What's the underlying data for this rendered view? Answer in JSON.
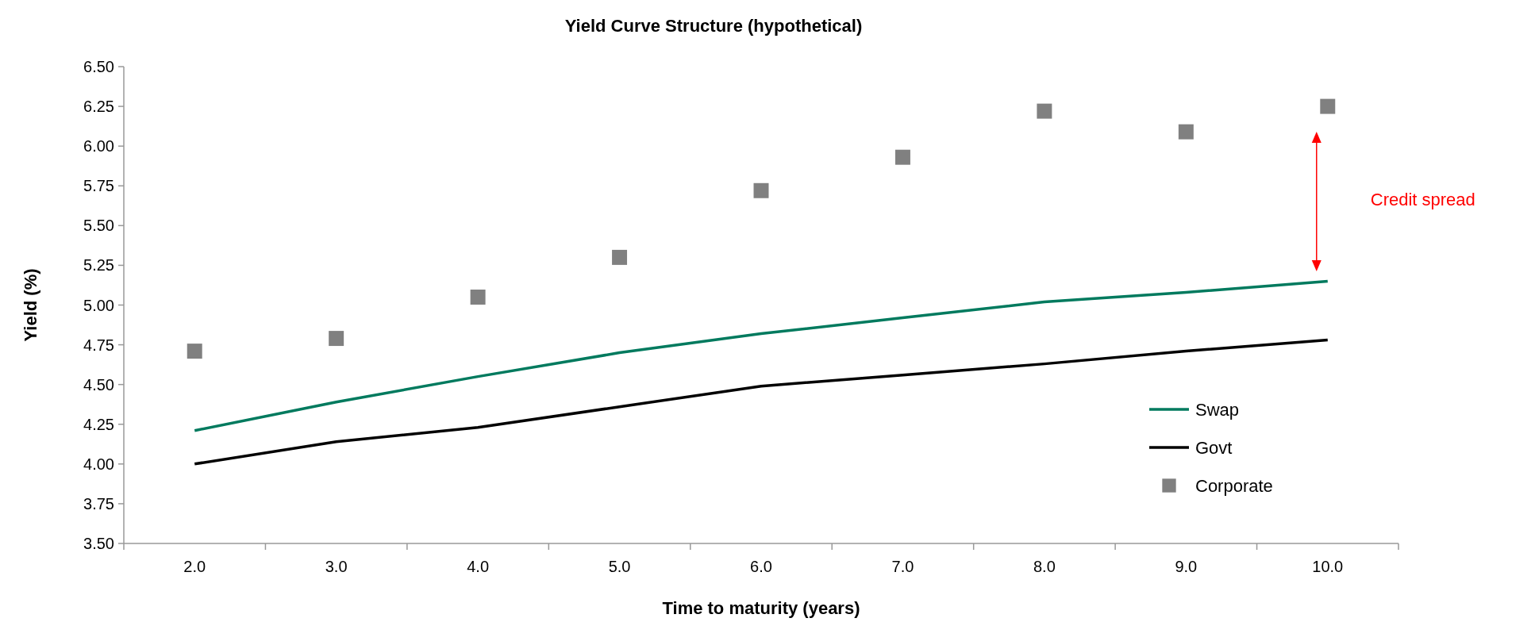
{
  "chart_data": {
    "type": "line",
    "title": "Yield Curve Structure (hypothetical)",
    "xlabel": "Time to maturity (years)",
    "ylabel": "Yield (%)",
    "categories": [
      "2.0",
      "3.0",
      "4.0",
      "5.0",
      "6.0",
      "7.0",
      "8.0",
      "9.0",
      "10.0"
    ],
    "series": [
      {
        "name": "Swap",
        "color": "#007a5e",
        "values": [
          4.21,
          4.39,
          4.55,
          4.7,
          4.82,
          4.92,
          5.02,
          5.08,
          5.15
        ]
      },
      {
        "name": "Govt",
        "color": "#000000",
        "values": [
          4.0,
          4.14,
          4.23,
          4.36,
          4.49,
          4.56,
          4.63,
          4.71,
          4.78
        ]
      },
      {
        "name": "Corporate",
        "type": "scatter",
        "marker": "square",
        "color": "#808080",
        "values": [
          4.71,
          4.79,
          5.05,
          5.3,
          5.72,
          5.93,
          6.22,
          6.09,
          6.25
        ]
      }
    ],
    "ylim": [
      3.5,
      6.5
    ],
    "yticks": [
      {
        "value": 3.5,
        "label": "3.50"
      },
      {
        "value": 3.75,
        "label": "3.75"
      },
      {
        "value": 4,
        "label": "4.00"
      },
      {
        "value": 4.25,
        "label": "4.25"
      },
      {
        "value": 4.5,
        "label": "4.50"
      },
      {
        "value": 4.75,
        "label": "4.75"
      },
      {
        "value": 5,
        "label": "5.00"
      },
      {
        "value": 5.25,
        "label": "5.25"
      },
      {
        "value": 5.5,
        "label": "5.50"
      },
      {
        "value": 5.75,
        "label": "5.75"
      },
      {
        "value": 6,
        "label": "6.00"
      },
      {
        "value": 6.25,
        "label": "6.25"
      },
      {
        "value": 6.5,
        "label": "6.50"
      }
    ],
    "annotations": [
      "Credit spread"
    ],
    "legend": "bottom right",
    "grid": false
  }
}
